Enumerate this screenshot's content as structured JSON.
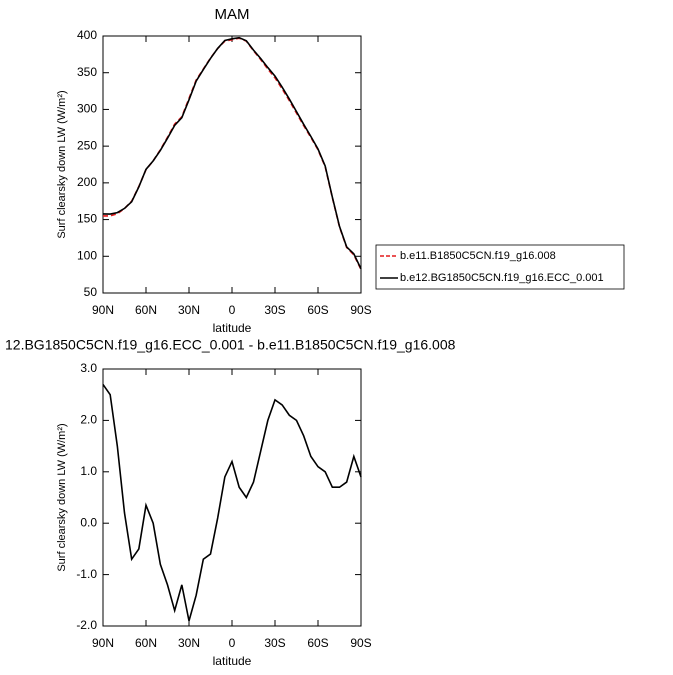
{
  "chart_data": [
    {
      "type": "line",
      "title": "MAM",
      "xlabel": "latitude",
      "ylabel": "Surf clearsky down LW (W/m²)",
      "x": [
        90,
        85,
        80,
        75,
        70,
        65,
        60,
        55,
        50,
        45,
        40,
        35,
        30,
        25,
        20,
        15,
        10,
        5,
        0,
        -5,
        -10,
        -15,
        -20,
        -25,
        -30,
        -35,
        -40,
        -45,
        -50,
        -55,
        -60,
        -65,
        -70,
        -75,
        -80,
        -85,
        -90
      ],
      "series": [
        {
          "name": "b.e11.B1850C5CN.f19_g16.008",
          "color": "#e41a1c",
          "dash": true,
          "values": [
            155,
            155,
            158,
            165,
            175,
            195,
            218,
            230,
            245,
            262,
            280,
            290,
            315,
            340,
            355,
            370,
            383,
            393,
            395,
            397,
            393,
            380,
            368,
            355,
            343,
            328,
            312,
            295,
            278,
            262,
            245,
            222,
            180,
            140,
            112,
            102,
            82
          ]
        },
        {
          "name": "b.e12.BG1850C5CN.f19_g16.ECC_0.001",
          "color": "#000000",
          "dash": false,
          "values": [
            157.7,
            157.5,
            159.5,
            165.2,
            174.3,
            194.5,
            218.4,
            230,
            244.2,
            260.8,
            278.3,
            288.8,
            313.1,
            338.6,
            354.3,
            369.4,
            383.1,
            393.9,
            396.2,
            397.7,
            393.5,
            380.8,
            369.4,
            357,
            345.4,
            330.3,
            314.1,
            297,
            279.7,
            263.3,
            246.1,
            223,
            180.7,
            140.7,
            112.8,
            103.3,
            82.9
          ]
        }
      ],
      "xlim": [
        90,
        -90
      ],
      "xticks": [
        {
          "value": 90,
          "label": "90N"
        },
        {
          "value": 60,
          "label": "60N"
        },
        {
          "value": 30,
          "label": "30N"
        },
        0,
        {
          "value": -30,
          "label": "30S"
        },
        {
          "value": -60,
          "label": "60S"
        },
        {
          "value": -90,
          "label": "90S"
        }
      ],
      "ylim": [
        50,
        400
      ],
      "yticks": [
        50,
        100,
        150,
        200,
        250,
        300,
        350,
        400
      ]
    },
    {
      "type": "line",
      "title": "12.BG1850C5CN.f19_g16.ECC_0.001 - b.e11.B1850C5CN.f19_g16.008",
      "xlabel": "latitude",
      "ylabel": "Surf clearsky down LW (W/m²)",
      "x": [
        90,
        85,
        80,
        75,
        70,
        65,
        60,
        55,
        50,
        45,
        40,
        35,
        30,
        25,
        20,
        15,
        10,
        5,
        0,
        -5,
        -10,
        -15,
        -20,
        -25,
        -30,
        -35,
        -40,
        -45,
        -50,
        -55,
        -60,
        -65,
        -70,
        -75,
        -80,
        -85,
        -90
      ],
      "series": [
        {
          "color": "#000000",
          "dash": false,
          "values": [
            2.7,
            2.5,
            1.5,
            0.2,
            -0.7,
            -0.5,
            0.35,
            0,
            -0.8,
            -1.2,
            -1.7,
            -1.2,
            -1.9,
            -1.4,
            -0.7,
            -0.6,
            0.1,
            0.9,
            1.2,
            0.7,
            0.5,
            0.8,
            1.4,
            2.0,
            2.4,
            2.3,
            2.1,
            2.0,
            1.7,
            1.3,
            1.1,
            1.0,
            0.7,
            0.7,
            0.8,
            1.3,
            0.9
          ]
        }
      ],
      "xlim": [
        90,
        -90
      ],
      "xticks": [
        {
          "value": 90,
          "label": "90N"
        },
        {
          "value": 60,
          "label": "60N"
        },
        {
          "value": 30,
          "label": "30N"
        },
        0,
        {
          "value": -30,
          "label": "30S"
        },
        {
          "value": -60,
          "label": "60S"
        },
        {
          "value": -90,
          "label": "90S"
        }
      ],
      "ylim": [
        -2,
        3
      ],
      "yticks": [
        {
          "value": -2,
          "label": "-2.0"
        },
        {
          "value": -1,
          "label": "-1.0"
        },
        {
          "value": 0,
          "label": "0.0"
        },
        {
          "value": 1,
          "label": "1.0"
        },
        {
          "value": 2,
          "label": "2.0"
        },
        {
          "value": 3,
          "label": "3.0"
        }
      ]
    }
  ]
}
